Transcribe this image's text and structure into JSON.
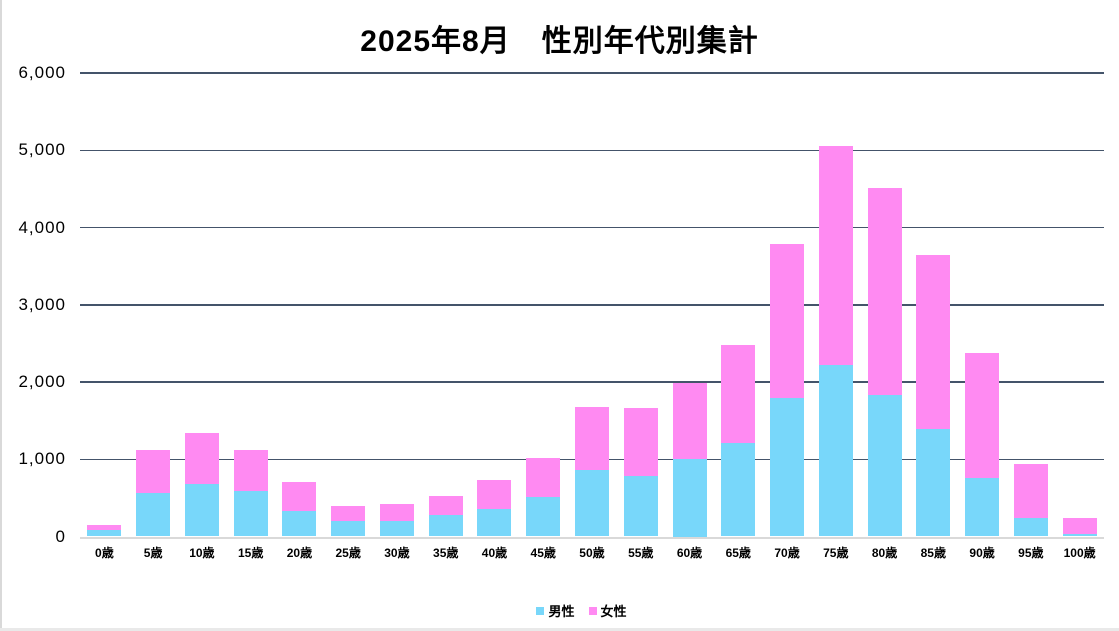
{
  "title": "2025年8月　性別年代別集計",
  "colors": {
    "male": "#78D7FA",
    "female": "#FF8AF2",
    "gridline": "#44546A",
    "axis_line": "#D9D9D9",
    "text": "#000000",
    "background": "#FFFFFF"
  },
  "legend": {
    "items": [
      {
        "label": "男性",
        "color": "#78D7FA"
      },
      {
        "label": "女性",
        "color": "#FF8AF2"
      }
    ],
    "position": "bottom"
  },
  "chart_data": {
    "type": "bar",
    "stacked": true,
    "title": "2025年8月　性別年代別集計",
    "xlabel": "",
    "ylabel": "",
    "categories": [
      "0歳",
      "5歳",
      "10歳",
      "15歳",
      "20歳",
      "25歳",
      "30歳",
      "35歳",
      "40歳",
      "45歳",
      "50歳",
      "55歳",
      "60歳",
      "65歳",
      "70歳",
      "75歳",
      "80歳",
      "85歳",
      "90歳",
      "95歳",
      "100歳"
    ],
    "series": [
      {
        "name": "男性",
        "color": "#78D7FA",
        "values": [
          80,
          560,
          680,
          590,
          335,
          200,
          205,
          280,
          360,
          510,
          860,
          780,
          1000,
          1210,
          1790,
          2220,
          1830,
          1390,
          755,
          240,
          30
        ]
      },
      {
        "name": "女性",
        "color": "#FF8AF2",
        "values": [
          75,
          560,
          660,
          530,
          370,
          200,
          220,
          250,
          365,
          510,
          820,
          880,
          990,
          1270,
          2000,
          2830,
          2680,
          2260,
          1615,
          695,
          205
        ]
      }
    ],
    "totals": [
      155,
      1120,
      1340,
      1120,
      705,
      400,
      425,
      530,
      725,
      1020,
      1680,
      1660,
      1990,
      2480,
      3790,
      5050,
      4510,
      3650,
      2370,
      935,
      235
    ],
    "ylim": [
      0,
      6000
    ],
    "ytick_interval": 1000,
    "ytick_labels": [
      "0",
      "1,000",
      "2,000",
      "3,000",
      "4,000",
      "5,000",
      "6,000"
    ],
    "grid": "horizontal-major",
    "legend_position": "bottom-center"
  }
}
